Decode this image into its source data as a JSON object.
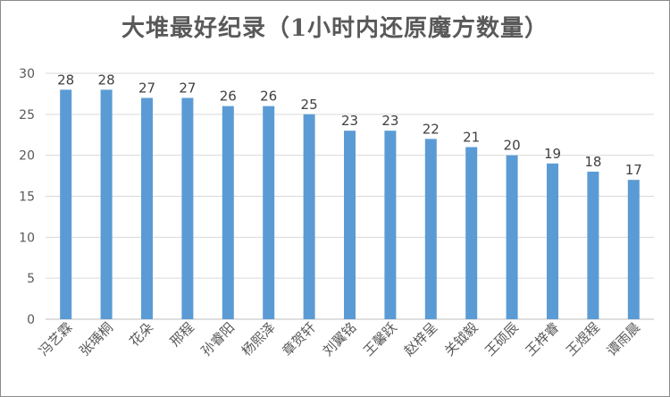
{
  "chart_data": {
    "type": "bar",
    "title": "大堆最好纪录（1小时内还原魔方数量）",
    "categories": [
      "冯艺霖",
      "张瑀桐",
      "花朵",
      "邢程",
      "孙睿阳",
      "杨熙泽",
      "章贺轩",
      "刘翼铭",
      "王馨跃",
      "赵梓呈",
      "关钺毅",
      "王硕辰",
      "王梓睿",
      "王煜程",
      "谭雨晨"
    ],
    "values": [
      28,
      28,
      27,
      27,
      26,
      26,
      25,
      23,
      23,
      22,
      21,
      20,
      19,
      18,
      17
    ],
    "ylim": [
      0,
      30
    ],
    "yticks": [
      "0",
      "5",
      "10",
      "15",
      "20",
      "25",
      "30"
    ],
    "xlabel": "",
    "ylabel": "",
    "grid": true,
    "bar_color": "#5b9bd5",
    "grid_color": "#d9d9d9"
  }
}
